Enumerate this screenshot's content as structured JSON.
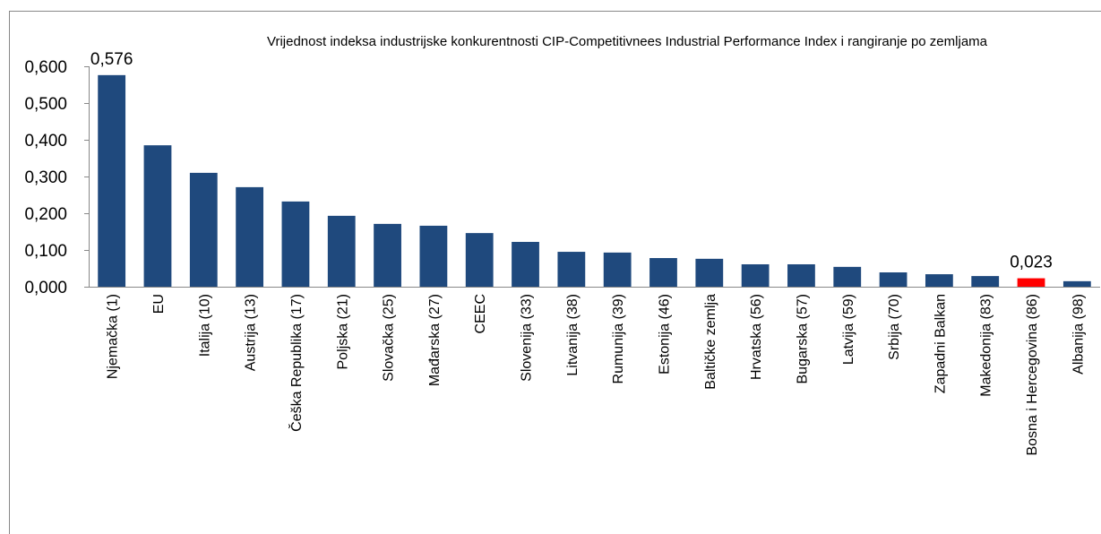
{
  "chart_data": {
    "type": "bar",
    "title": "Vrijednost indeksa industrijske konkurentnosti CIP-Competitivnees Industrial Performance Index i rangiranje po zemljama",
    "categories": [
      "Njemačka (1)",
      "EU",
      "Italija (10)",
      "Austrija (13)",
      "Češka Republika (17)",
      "Poljska (21)",
      "Slovačka (25)",
      "Mađarska (27)",
      "CEEC",
      "Slovenija (33)",
      "Litvanija (38)",
      "Rumunija (39)",
      "Estonija (46)",
      "Baltičke zemlja",
      "Hrvatska (56)",
      "Bugarska (57)",
      "Latvija (59)",
      "Srbija (70)",
      "Zapadni Balkan",
      "Makedonija (83)",
      "Bosna i Hercegovina (86)",
      "Albanija (98)"
    ],
    "values": [
      0.576,
      0.385,
      0.31,
      0.271,
      0.232,
      0.193,
      0.171,
      0.166,
      0.146,
      0.122,
      0.095,
      0.093,
      0.078,
      0.076,
      0.061,
      0.061,
      0.054,
      0.039,
      0.034,
      0.029,
      0.023,
      0.015
    ],
    "value_labels": [
      "0,576",
      null,
      null,
      null,
      null,
      null,
      null,
      null,
      null,
      null,
      null,
      null,
      null,
      null,
      null,
      null,
      null,
      null,
      null,
      null,
      "0,023",
      null
    ],
    "colors": [
      "#1f497d",
      "#1f497d",
      "#1f497d",
      "#1f497d",
      "#1f497d",
      "#1f497d",
      "#1f497d",
      "#1f497d",
      "#1f497d",
      "#1f497d",
      "#1f497d",
      "#1f497d",
      "#1f497d",
      "#1f497d",
      "#1f497d",
      "#1f497d",
      "#1f497d",
      "#1f497d",
      "#1f497d",
      "#1f497d",
      "#ff0000",
      "#1f497d"
    ],
    "ylim": [
      0,
      0.6
    ],
    "yticks": [
      {
        "value": 0,
        "label": "0,000"
      },
      {
        "value": 0.1,
        "label": "0,100"
      },
      {
        "value": 0.2,
        "label": "0,200"
      },
      {
        "value": 0.3,
        "label": "0,300"
      },
      {
        "value": 0.4,
        "label": "0,400"
      },
      {
        "value": 0.5,
        "label": "0,500"
      },
      {
        "value": 0.6,
        "label": "0,600"
      }
    ],
    "grid": false
  }
}
